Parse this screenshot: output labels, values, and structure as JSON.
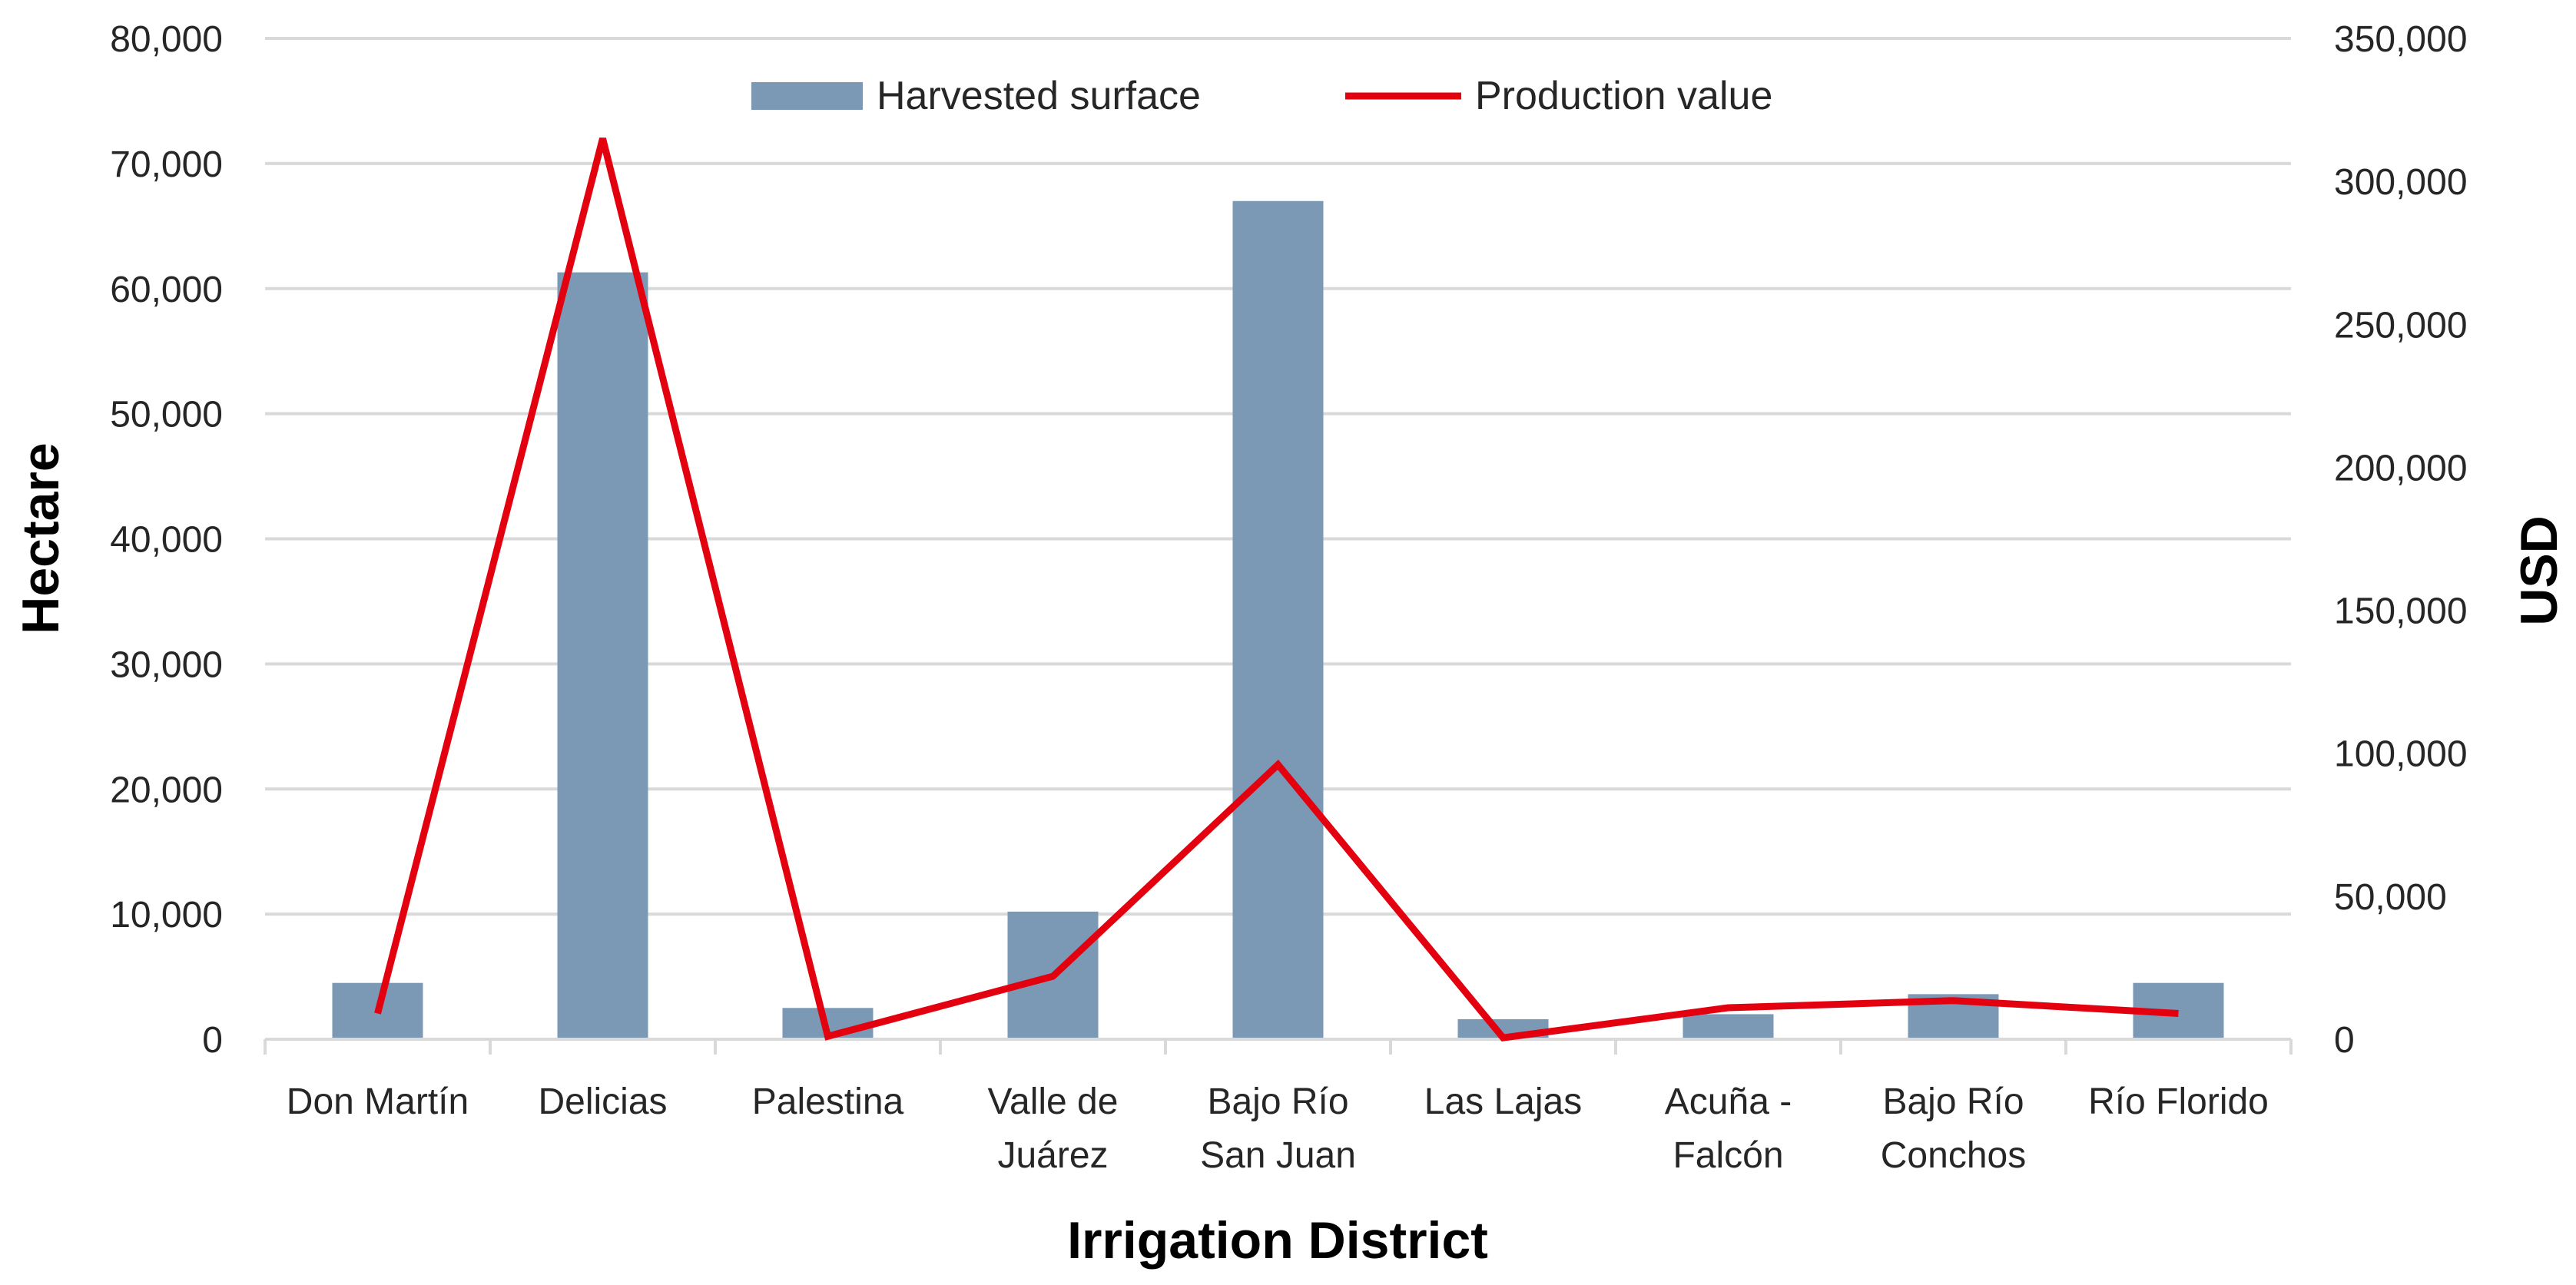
{
  "chart_data": {
    "type": "bar",
    "xlabel": "Irrigation District",
    "ylabel": "Hectare",
    "y2label": "USD",
    "ylim": [
      0,
      80000
    ],
    "y2lim": [
      0,
      350000
    ],
    "grid": true,
    "legend_position": "top-center",
    "categories": [
      [
        "Don Martín"
      ],
      [
        "Delicias"
      ],
      [
        "Palestina"
      ],
      [
        "Valle de",
        "Juárez"
      ],
      [
        "Bajo Río",
        "San Juan"
      ],
      [
        "Las Lajas"
      ],
      [
        "Acuña -",
        "Falcón"
      ],
      [
        "Bajo Río",
        "Conchos"
      ],
      [
        "Río Florido"
      ]
    ],
    "left_ticks": [
      {
        "value": 0,
        "label": "0"
      },
      {
        "value": 10000,
        "label": "10,000"
      },
      {
        "value": 20000,
        "label": "20,000"
      },
      {
        "value": 30000,
        "label": "30,000"
      },
      {
        "value": 40000,
        "label": "40,000"
      },
      {
        "value": 50000,
        "label": "50,000"
      },
      {
        "value": 60000,
        "label": "60,000"
      },
      {
        "value": 70000,
        "label": "70,000"
      },
      {
        "value": 80000,
        "label": "80,000"
      }
    ],
    "right_ticks": [
      {
        "value": 0,
        "label": "0"
      },
      {
        "value": 50000,
        "label": "50,000"
      },
      {
        "value": 100000,
        "label": "100,000"
      },
      {
        "value": 150000,
        "label": "150,000"
      },
      {
        "value": 200000,
        "label": "200,000"
      },
      {
        "value": 250000,
        "label": "250,000"
      },
      {
        "value": 300000,
        "label": "300,000"
      },
      {
        "value": 350000,
        "label": "350,000"
      }
    ],
    "series": [
      {
        "name": "Harvested surface",
        "type": "bar",
        "axis": "left",
        "color": "#7b99b4",
        "values": [
          4500,
          61300,
          2500,
          10200,
          67000,
          1600,
          2000,
          3600,
          4500
        ]
      },
      {
        "name": "Production value",
        "type": "line",
        "axis": "right",
        "color": "#e3000f",
        "values": [
          9000,
          315000,
          1000,
          22000,
          96000,
          500,
          11000,
          13500,
          9000
        ]
      }
    ]
  }
}
